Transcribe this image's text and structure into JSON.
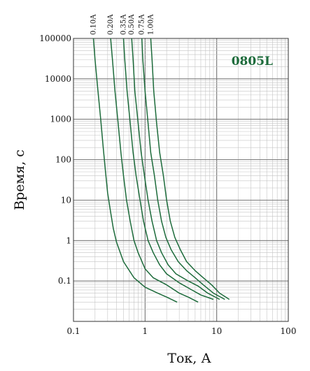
{
  "chart_data": {
    "type": "line",
    "title": "",
    "xlabel": "Ток, А",
    "ylabel": "Время, с",
    "x_scale": "log",
    "y_scale": "log",
    "xlim": [
      0.1,
      100
    ],
    "ylim": [
      0.01,
      100000
    ],
    "grid": true,
    "annotation": "0805L",
    "line_color": "#1d6b3b",
    "x_ticks": [
      "0.1",
      "1",
      "10",
      "100"
    ],
    "y_ticks": [
      "100000",
      "10000",
      "1000",
      "100",
      "10",
      "1",
      "0.1"
    ],
    "series": [
      {
        "name": "0.10A",
        "x": [
          0.19,
          0.2,
          0.22,
          0.24,
          0.26,
          0.28,
          0.3,
          0.33,
          0.36,
          0.4,
          0.5,
          0.7,
          1.0,
          1.5,
          2.0,
          2.8
        ],
        "y": [
          100000,
          30000,
          5000,
          1000,
          200,
          50,
          15,
          5,
          2,
          0.9,
          0.3,
          0.12,
          0.07,
          0.05,
          0.04,
          0.03
        ]
      },
      {
        "name": "0.20A",
        "x": [
          0.33,
          0.35,
          0.38,
          0.42,
          0.46,
          0.5,
          0.55,
          0.62,
          0.7,
          0.8,
          1.0,
          1.3,
          2.0,
          3.0,
          4.0,
          5.5
        ],
        "y": [
          100000,
          30000,
          5000,
          800,
          150,
          40,
          10,
          3,
          1,
          0.5,
          0.2,
          0.12,
          0.08,
          0.05,
          0.04,
          0.03
        ]
      },
      {
        "name": "0.35A",
        "x": [
          0.5,
          0.52,
          0.56,
          0.62,
          0.68,
          0.75,
          0.85,
          0.95,
          1.1,
          1.3,
          1.6,
          2.0,
          3.0,
          4.5,
          6.0,
          9.0
        ],
        "y": [
          100000,
          30000,
          5000,
          800,
          150,
          40,
          10,
          3,
          1,
          0.5,
          0.25,
          0.15,
          0.09,
          0.06,
          0.045,
          0.035
        ]
      },
      {
        "name": "0.50A",
        "x": [
          0.65,
          0.68,
          0.72,
          0.8,
          0.88,
          0.98,
          1.1,
          1.25,
          1.45,
          1.7,
          2.1,
          2.7,
          4.0,
          5.5,
          7.5,
          11.0
        ],
        "y": [
          100000,
          30000,
          5000,
          800,
          150,
          40,
          10,
          3,
          1,
          0.5,
          0.25,
          0.15,
          0.1,
          0.075,
          0.05,
          0.035
        ]
      },
      {
        "name": "0.75A",
        "x": [
          0.9,
          0.93,
          1.0,
          1.1,
          1.2,
          1.35,
          1.5,
          1.7,
          1.95,
          2.3,
          2.9,
          3.8,
          5.0,
          6.5,
          9.0,
          13.0
        ],
        "y": [
          100000,
          30000,
          5000,
          800,
          150,
          40,
          10,
          3,
          1.2,
          0.6,
          0.3,
          0.18,
          0.12,
          0.08,
          0.05,
          0.035
        ]
      },
      {
        "name": "1.00A",
        "x": [
          1.2,
          1.25,
          1.32,
          1.45,
          1.6,
          1.8,
          2.0,
          2.25,
          2.6,
          3.1,
          3.8,
          5.0,
          6.5,
          8.5,
          11.0,
          15.0
        ],
        "y": [
          100000,
          30000,
          5000,
          800,
          150,
          40,
          10,
          3,
          1.2,
          0.6,
          0.3,
          0.18,
          0.12,
          0.08,
          0.05,
          0.035
        ]
      }
    ]
  }
}
